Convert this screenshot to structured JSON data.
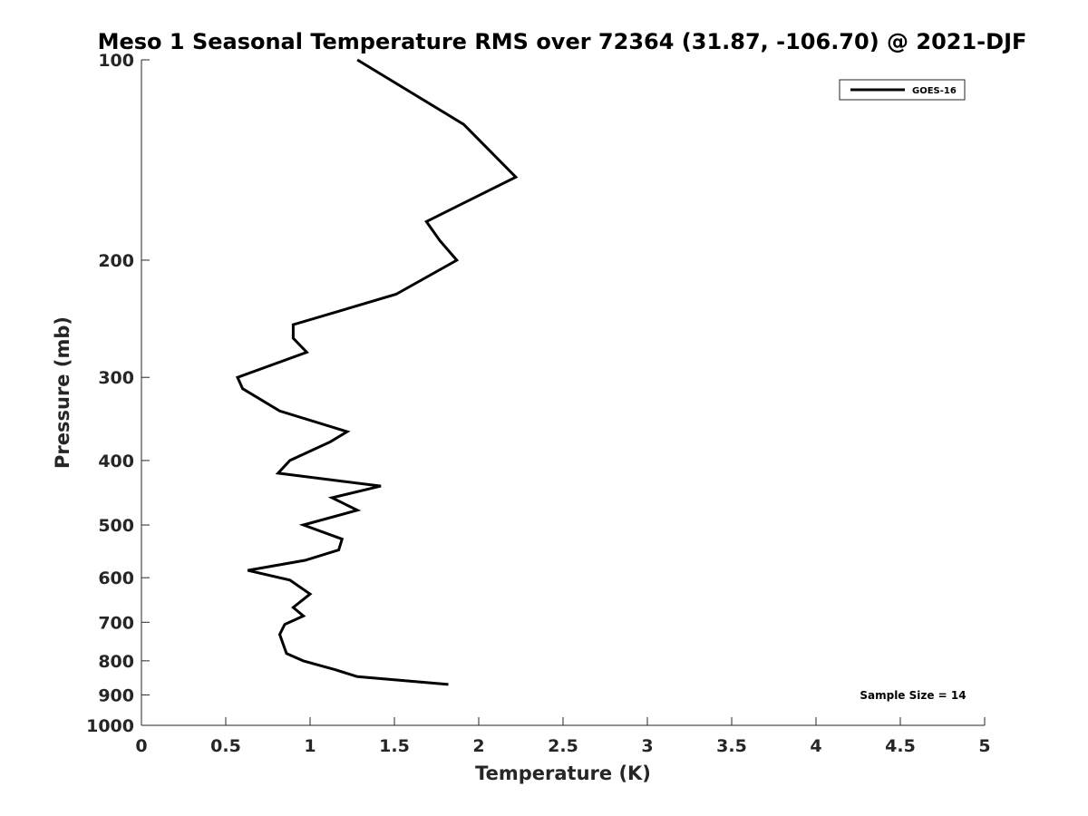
{
  "chart_data": {
    "type": "line",
    "title": "Meso 1 Seasonal Temperature RMS over 72364 (31.87, -106.70) @ 2021-DJF",
    "xlabel": "Temperature (K)",
    "ylabel": "Pressure (mb)",
    "xlim": [
      0,
      5
    ],
    "ylim": [
      1000,
      100
    ],
    "y_scale": "log",
    "y_reversed": true,
    "x_ticks": [
      "0",
      "0.5",
      "1",
      "1.5",
      "2",
      "2.5",
      "3",
      "3.5",
      "4",
      "4.5",
      "5"
    ],
    "y_ticks": [
      "100",
      "200",
      "300",
      "400",
      "500",
      "600",
      "700",
      "800",
      "900",
      "1000"
    ],
    "grid": false,
    "legend_position": "top-right",
    "annotation": "Sample Size = 14",
    "series": [
      {
        "name": "GOES-16",
        "color": "#000000",
        "points": [
          {
            "t": 1.28,
            "p": 100
          },
          {
            "t": 1.91,
            "p": 125
          },
          {
            "t": 2.22,
            "p": 150
          },
          {
            "t": 1.69,
            "p": 175
          },
          {
            "t": 1.77,
            "p": 187
          },
          {
            "t": 1.87,
            "p": 200
          },
          {
            "t": 1.51,
            "p": 225
          },
          {
            "t": 0.9,
            "p": 250
          },
          {
            "t": 0.9,
            "p": 262
          },
          {
            "t": 0.98,
            "p": 275
          },
          {
            "t": 0.57,
            "p": 300
          },
          {
            "t": 0.6,
            "p": 312
          },
          {
            "t": 0.82,
            "p": 337
          },
          {
            "t": 1.22,
            "p": 362
          },
          {
            "t": 1.12,
            "p": 375
          },
          {
            "t": 0.88,
            "p": 400
          },
          {
            "t": 0.81,
            "p": 418
          },
          {
            "t": 1.42,
            "p": 437
          },
          {
            "t": 1.13,
            "p": 455
          },
          {
            "t": 1.28,
            "p": 475
          },
          {
            "t": 0.96,
            "p": 500
          },
          {
            "t": 1.19,
            "p": 525
          },
          {
            "t": 1.17,
            "p": 545
          },
          {
            "t": 0.97,
            "p": 565
          },
          {
            "t": 0.63,
            "p": 585
          },
          {
            "t": 0.88,
            "p": 605
          },
          {
            "t": 1.0,
            "p": 635
          },
          {
            "t": 0.9,
            "p": 665
          },
          {
            "t": 0.96,
            "p": 685
          },
          {
            "t": 0.85,
            "p": 705
          },
          {
            "t": 0.82,
            "p": 730
          },
          {
            "t": 0.86,
            "p": 780
          },
          {
            "t": 0.96,
            "p": 800
          },
          {
            "t": 1.15,
            "p": 825
          },
          {
            "t": 1.28,
            "p": 845
          },
          {
            "t": 1.82,
            "p": 868
          }
        ]
      }
    ]
  }
}
